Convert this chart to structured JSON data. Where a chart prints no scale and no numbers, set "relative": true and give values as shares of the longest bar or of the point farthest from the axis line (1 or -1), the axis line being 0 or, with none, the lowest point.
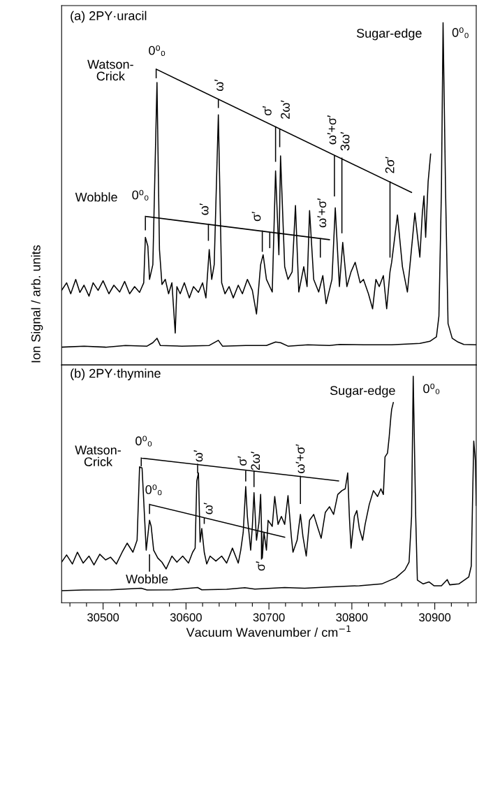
{
  "chart_data": [
    {
      "type": "line",
      "title": "(a) 2PY·uracil",
      "ylabel": "Ion Signal / arb. units",
      "relative": true,
      "xlim": [
        30450,
        30950
      ],
      "tick_labels": false,
      "series": [
        {
          "color": "#000000",
          "x": [
            30450,
            30456,
            30461,
            30467,
            30472,
            30477,
            30483,
            30488,
            30494,
            30500,
            30507,
            30513,
            30520,
            30526,
            30532,
            30538,
            30544,
            30549,
            30551,
            30554,
            30556,
            30560,
            30565,
            30568,
            30571,
            30575,
            30579,
            30583,
            30587,
            30589,
            30593,
            30598,
            30604,
            30609,
            30615,
            30620,
            30624,
            30628,
            30631,
            30634,
            30639,
            30643,
            30647,
            30652,
            30657,
            30663,
            30668,
            30674,
            30680,
            30685,
            30690,
            30693,
            30697,
            30704,
            30708,
            30712,
            30714,
            30719,
            30723,
            30728,
            30732,
            30736,
            30742,
            30746,
            30749,
            30754,
            30760,
            30765,
            30769,
            30776,
            30780,
            30785,
            30789,
            30794,
            30799,
            30804,
            30810,
            30814,
            30820,
            30825,
            30829,
            30833,
            30838,
            30842,
            30846,
            30848,
            30855,
            30861,
            30867,
            30871,
            30876,
            30882,
            30885,
            30887,
            30889,
            30892,
            30895
          ],
          "values": [
            0.218,
            0.24,
            0.208,
            0.25,
            0.212,
            0.233,
            0.201,
            0.24,
            0.218,
            0.246,
            0.208,
            0.233,
            0.213,
            0.244,
            0.208,
            0.229,
            0.212,
            0.24,
            0.373,
            0.347,
            0.25,
            0.293,
            0.825,
            0.337,
            0.235,
            0.25,
            0.208,
            0.24,
            0.093,
            0.229,
            0.208,
            0.24,
            0.196,
            0.229,
            0.212,
            0.24,
            0.196,
            0.337,
            0.25,
            0.293,
            0.731,
            0.24,
            0.208,
            0.229,
            0.196,
            0.233,
            0.208,
            0.25,
            0.218,
            0.149,
            0.293,
            0.322,
            0.25,
            0.213,
            0.567,
            0.322,
            0.611,
            0.287,
            0.25,
            0.272,
            0.466,
            0.213,
            0.287,
            0.229,
            0.451,
            0.25,
            0.213,
            0.261,
            0.179,
            0.25,
            0.459,
            0.229,
            0.358,
            0.229,
            0.272,
            0.3,
            0.24,
            0.25,
            0.208,
            0.164,
            0.25,
            0.229,
            0.261,
            0.164,
            0.272,
            0.3,
            0.438,
            0.287,
            0.213,
            0.315,
            0.444,
            0.315,
            0.444,
            0.494,
            0.373,
            0.536,
            0.616
          ]
        },
        {
          "color": "#000000",
          "x": [
            30450,
            30477,
            30503,
            30527,
            30553,
            30560,
            30565,
            30569,
            30595,
            30628,
            30639,
            30644,
            30672,
            30697,
            30708,
            30714,
            30723,
            30747,
            30773,
            30785,
            30814,
            30848,
            30882,
            30894,
            30902,
            30905,
            30908,
            30910,
            30913,
            30916,
            30921,
            30928,
            30935,
            30950
          ],
          "values": [
            0.052,
            0.055,
            0.052,
            0.057,
            0.055,
            0.065,
            0.078,
            0.057,
            0.055,
            0.057,
            0.072,
            0.055,
            0.057,
            0.057,
            0.067,
            0.065,
            0.055,
            0.059,
            0.057,
            0.06,
            0.059,
            0.059,
            0.063,
            0.069,
            0.082,
            0.143,
            0.509,
            1.0,
            0.509,
            0.121,
            0.078,
            0.067,
            0.06,
            0.059
          ]
        },
        {
          "color": "#000000",
          "x": [
            30564,
            30872,
            null,
            30564,
            30564,
            null,
            30639,
            30639,
            null,
            30708,
            30708,
            null,
            30713,
            30713,
            null,
            30779,
            30779,
            null,
            30788,
            30788,
            null,
            30846,
            30846
          ],
          "values": [
            0.864,
            0.504,
            null,
            0.864,
            0.839,
            null,
            0.776,
            0.752,
            null,
            0.696,
            0.595,
            null,
            0.689,
            0.638,
            null,
            0.612,
            0.494,
            null,
            0.604,
            0.386,
            null,
            0.535,
            0.315
          ]
        },
        {
          "color": "#000000",
          "x": [
            30551,
            30773,
            null,
            30551,
            30551,
            null,
            30627,
            30627,
            null,
            30692,
            30692,
            null,
            30701,
            30701,
            null,
            30762,
            30762
          ],
          "values": [
            0.434,
            0.366,
            null,
            0.434,
            0.395,
            null,
            0.411,
            0.364,
            null,
            0.391,
            0.332,
            null,
            0.388,
            0.343,
            null,
            0.37,
            0.315
          ]
        }
      ],
      "annotations": [
        "Watson-\nCrick",
        "0⁰₀",
        "ω′",
        "σ′",
        "2ω′",
        "ω′+σ′",
        "3ω′",
        "2σ′",
        "Wobble",
        "0⁰₀",
        "ω′",
        "σ′",
        "ω′+σ′",
        "Sugar-edge",
        "0⁰₀"
      ]
    },
    {
      "type": "line",
      "title": "(b) 2PY·thymine",
      "xlabel": "Vacuum Wavenumber / cm$^{−1}$",
      "relative": true,
      "xlim": [
        30450,
        30950
      ],
      "tick_labels": "x",
      "xticks": [
        {
          "value": 30460,
          "label": null
        },
        {
          "value": 30480,
          "label": null
        },
        30500,
        {
          "value": 30520,
          "label": null
        },
        {
          "value": 30540,
          "label": null
        },
        {
          "value": 30560,
          "label": null
        },
        {
          "value": 30580,
          "label": null
        },
        30600,
        {
          "value": 30620,
          "label": null
        },
        {
          "value": 30640,
          "label": null
        },
        {
          "value": 30660,
          "label": null
        },
        {
          "value": 30680,
          "label": null
        },
        30700,
        {
          "value": 30720,
          "label": null
        },
        {
          "value": 30740,
          "label": null
        },
        {
          "value": 30760,
          "label": null
        },
        {
          "value": 30780,
          "label": null
        },
        30800,
        {
          "value": 30820,
          "label": null
        },
        {
          "value": 30840,
          "label": null
        },
        {
          "value": 30860,
          "label": null
        },
        {
          "value": 30880,
          "label": null
        },
        30900,
        {
          "value": 30920,
          "label": null
        },
        {
          "value": 30940,
          "label": null
        }
      ],
      "series": [
        {
          "color": "#000000",
          "x": [
            30450,
            30456,
            30463,
            30469,
            30476,
            30483,
            30489,
            30496,
            30503,
            30509,
            30516,
            30523,
            30529,
            30536,
            30541,
            30544,
            30547,
            30549,
            30552,
            30556,
            30558,
            30561,
            30566,
            30571,
            30576,
            30583,
            30589,
            30596,
            30603,
            30608,
            30611,
            30613,
            30615,
            30617,
            30619,
            30622,
            30625,
            30629,
            30636,
            30643,
            30649,
            30656,
            30663,
            30666,
            30669,
            30672,
            30674,
            30678,
            30680,
            30682,
            30685,
            30688,
            30690,
            30692,
            30694,
            30697,
            30699,
            30704,
            30707,
            30711,
            30715,
            30719,
            30723,
            30727,
            30729,
            30734,
            30738,
            30741,
            30745,
            30749,
            30754,
            30759,
            30763,
            30768,
            30773,
            30778,
            30783,
            30788,
            30792,
            30795,
            30797,
            30799,
            30803,
            30806,
            30809,
            30813,
            30816,
            30821,
            30826,
            30831,
            30835,
            30838,
            30840,
            30843,
            30845,
            30847,
            30848,
            30850
          ],
          "values": [
            0.179,
            0.211,
            0.171,
            0.223,
            0.175,
            0.206,
            0.167,
            0.214,
            0.189,
            0.201,
            0.171,
            0.223,
            0.263,
            0.223,
            0.276,
            0.6,
            0.595,
            0.451,
            0.232,
            0.364,
            0.337,
            0.232,
            0.197,
            0.179,
            0.149,
            0.206,
            0.179,
            0.206,
            0.175,
            0.223,
            0.241,
            0.538,
            0.573,
            0.268,
            0.328,
            0.223,
            0.171,
            0.206,
            0.184,
            0.206,
            0.175,
            0.241,
            0.175,
            0.232,
            0.311,
            0.513,
            0.381,
            0.232,
            0.337,
            0.486,
            0.276,
            0.355,
            0.478,
            0.197,
            0.311,
            0.232,
            0.364,
            0.337,
            0.469,
            0.346,
            0.381,
            0.346,
            0.473,
            0.293,
            0.223,
            0.276,
            0.39,
            0.293,
            0.206,
            0.364,
            0.39,
            0.33,
            0.285,
            0.399,
            0.424,
            0.39,
            0.478,
            0.495,
            0.503,
            0.573,
            0.381,
            0.241,
            0.381,
            0.407,
            0.328,
            0.276,
            0.346,
            0.434,
            0.495,
            0.469,
            0.503,
            0.478,
            0.644,
            0.661,
            0.731,
            0.819,
            0.854,
            0.884
          ]
        },
        {
          "color": "#000000",
          "x": [
            30450,
            30476,
            30509,
            30546,
            30553,
            30583,
            30614,
            30619,
            30649,
            30671,
            30683,
            30719,
            30743,
            30776,
            30809,
            30836,
            30853,
            30864,
            30869,
            30872,
            30874,
            30877,
            30879,
            30886,
            30893,
            30899,
            30908,
            30915,
            30918,
            30929,
            30941,
            30944,
            30947,
            30949,
            30950
          ],
          "values": [
            0.053,
            0.056,
            0.057,
            0.064,
            0.056,
            0.057,
            0.067,
            0.057,
            0.059,
            0.066,
            0.06,
            0.067,
            0.064,
            0.07,
            0.075,
            0.083,
            0.11,
            0.145,
            0.179,
            0.381,
            1.0,
            0.381,
            0.1,
            0.083,
            0.092,
            0.075,
            0.075,
            0.102,
            0.079,
            0.083,
            0.114,
            0.162,
            0.714,
            0.626,
            0.43
          ]
        },
        {
          "color": "#000000",
          "x": [
            30546,
            30784,
            null,
            30546,
            30546,
            null,
            30614,
            30614,
            null,
            30672,
            30672,
            null,
            30682,
            30682,
            null,
            30738,
            30738
          ],
          "values": [
            0.639,
            0.538,
            null,
            0.639,
            0.604,
            null,
            0.611,
            0.573,
            null,
            0.586,
            0.538,
            null,
            0.582,
            0.513,
            null,
            0.558,
            0.438
          ]
        },
        {
          "color": "#000000",
          "x": [
            30556,
            30719,
            null,
            30556,
            30556,
            null,
            30622,
            30622,
            null,
            30691,
            30691
          ],
          "values": [
            0.434,
            0.289,
            null,
            0.434,
            0.394,
            null,
            0.375,
            0.35,
            null,
            0.314,
            0.193
          ]
        },
        {
          "color": "#000000",
          "x": [
            30556,
            30556
          ],
          "values": [
            0.211,
            0.14
          ]
        }
      ],
      "annotations": [
        "Watson-\nCrick",
        "0⁰₀",
        "ω′",
        "σ′",
        "2ω′",
        "ω′+σ′",
        "0⁰₀",
        "ω′",
        "σ′",
        "Wobble",
        "Sugar-edge",
        "0⁰₀"
      ]
    }
  ]
}
